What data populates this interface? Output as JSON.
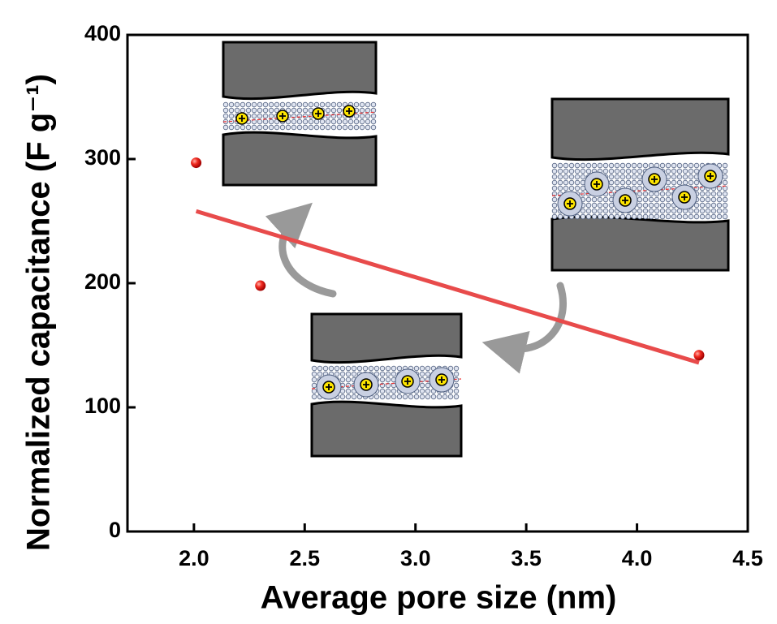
{
  "chart_data": {
    "type": "scatter",
    "x_label": "Average pore size (nm)",
    "y_label": "Normalized capacitance (F g⁻¹)",
    "series": [
      {
        "type": "scatter",
        "color": "#e8201e",
        "x": [
          2.01,
          2.3,
          4.28
        ],
        "values": [
          297,
          198,
          142
        ]
      },
      {
        "type": "line",
        "color": "#e84b4b",
        "x": [
          2.01,
          4.28
        ],
        "values": [
          258,
          136
        ]
      }
    ],
    "xlim": [
      1.7,
      4.5
    ],
    "xticks": [
      {
        "value": 2.0,
        "label": "2.0"
      },
      2.5,
      {
        "value": 3.0,
        "label": "3.0"
      },
      3.5,
      {
        "value": 4.0,
        "label": "4.0"
      },
      4.5
    ],
    "ylim": [
      0,
      400
    ],
    "yticks": [
      0,
      100,
      200,
      300,
      400
    ]
  }
}
